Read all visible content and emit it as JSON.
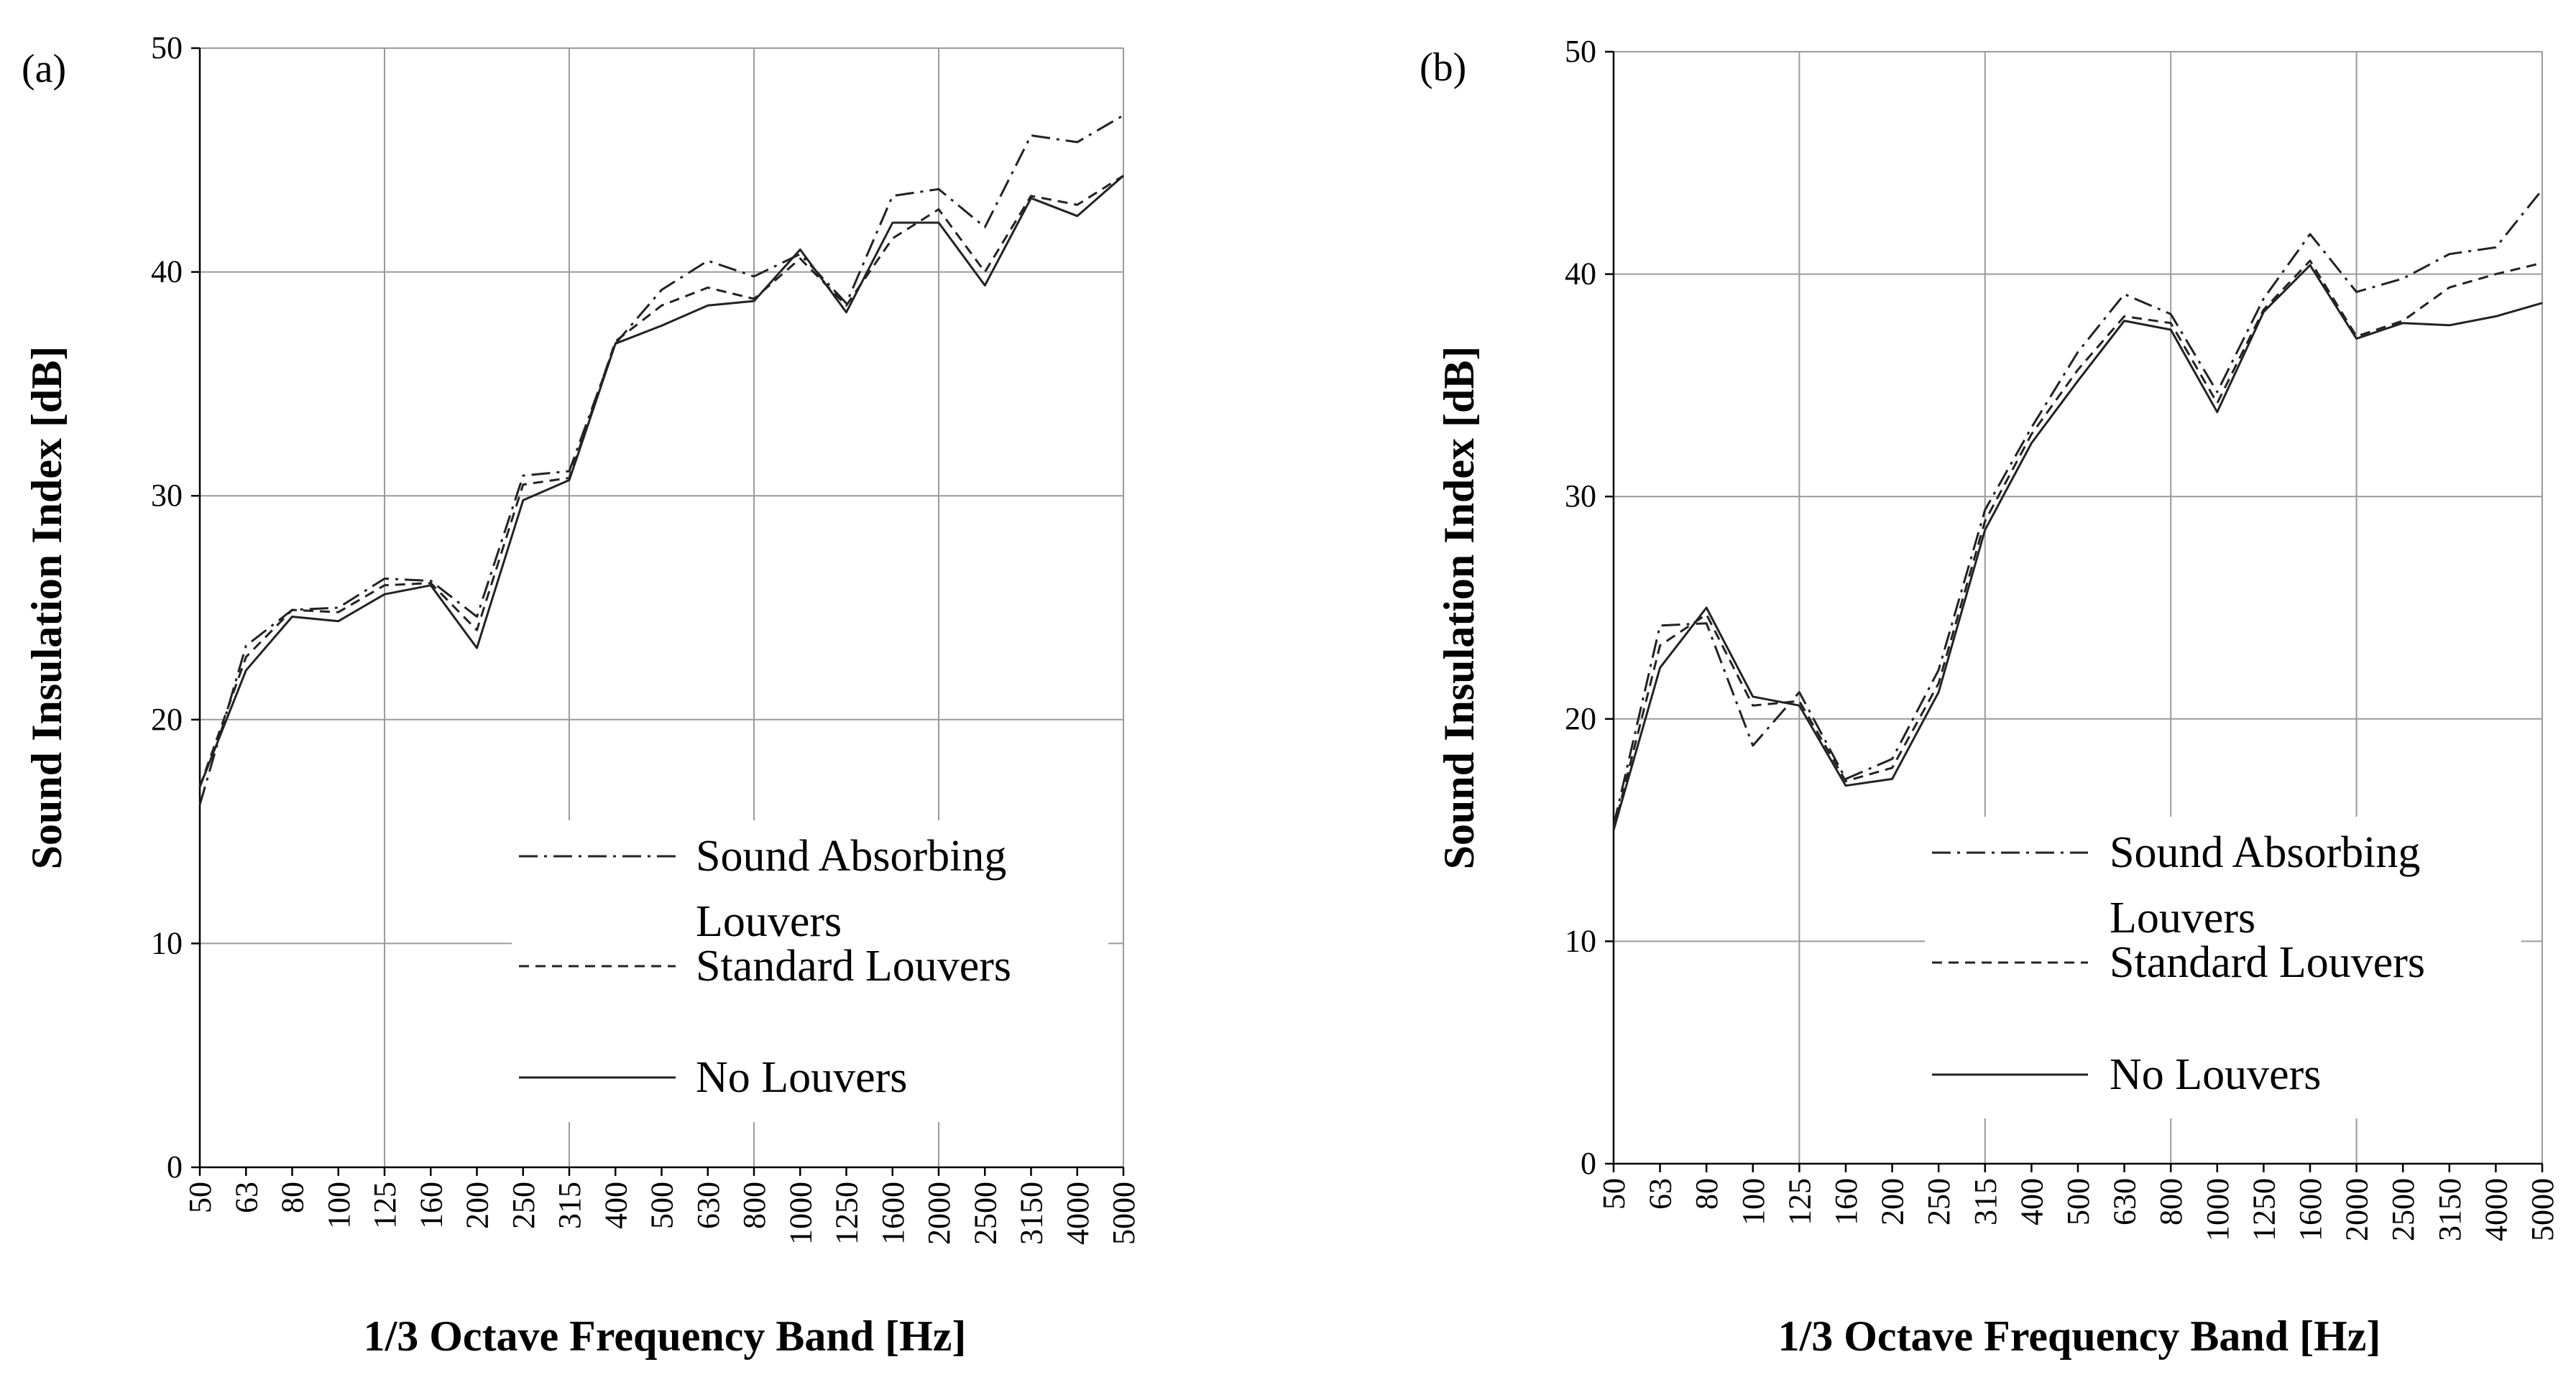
{
  "chart_data": [
    {
      "type": "line",
      "panel_label": "(a)",
      "xlabel": "1/3 Octave Frequency Band [Hz]",
      "ylabel": "Sound Insulation Index [dB]",
      "ylim": [
        0,
        50
      ],
      "yticks": [
        "0",
        "10",
        "20",
        "30",
        "40",
        "50"
      ],
      "categories": [
        "50",
        "63",
        "80",
        "100",
        "125",
        "160",
        "200",
        "250",
        "315",
        "400",
        "500",
        "630",
        "800",
        "1000",
        "1250",
        "1600",
        "2000",
        "2500",
        "3150",
        "4000",
        "5000"
      ],
      "legend": [
        {
          "label_line1": "Sound Absorbing",
          "label_line2": "Louvers",
          "dash": "dash-dot"
        },
        {
          "label_line1": "Standard Louvers",
          "label_line2": "",
          "dash": "dashed"
        },
        {
          "label_line1": "No Louvers",
          "label_line2": "",
          "dash": "solid"
        }
      ],
      "series": [
        {
          "name": "Sound Absorbing Louvers",
          "values": [
            16.2,
            23.3,
            24.9,
            25.0,
            26.3,
            26.2,
            24.6,
            30.9,
            31.1,
            36.8,
            39.2,
            40.5,
            39.8,
            40.8,
            38.6,
            43.4,
            43.7,
            42.0,
            46.1,
            45.8,
            47.0
          ]
        },
        {
          "name": "Standard Louvers",
          "values": [
            17.0,
            22.8,
            24.9,
            24.8,
            26.0,
            26.1,
            24.0,
            30.5,
            30.8,
            36.9,
            38.5,
            39.3,
            38.8,
            40.6,
            38.5,
            41.5,
            42.8,
            40.0,
            43.4,
            43.0,
            44.3
          ]
        },
        {
          "name": "No Louvers",
          "values": [
            17.0,
            22.2,
            24.6,
            24.4,
            25.6,
            26.0,
            23.2,
            29.8,
            30.7,
            36.8,
            37.6,
            38.5,
            38.7,
            41.0,
            38.2,
            42.2,
            42.2,
            39.4,
            43.3,
            42.5,
            44.3
          ]
        }
      ]
    },
    {
      "type": "line",
      "panel_label": "(b)",
      "xlabel": "1/3 Octave Frequency Band [Hz]",
      "ylabel": "Sound Insulation Index [dB]",
      "ylim": [
        0,
        50
      ],
      "yticks": [
        "0",
        "10",
        "20",
        "30",
        "40",
        "50"
      ],
      "categories": [
        "50",
        "63",
        "80",
        "100",
        "125",
        "160",
        "200",
        "250",
        "315",
        "400",
        "500",
        "630",
        "800",
        "1000",
        "1250",
        "1600",
        "2000",
        "2500",
        "3150",
        "4000",
        "5000"
      ],
      "legend": [
        {
          "label_line1": "Sound Absorbing",
          "label_line2": "Louvers",
          "dash": "dash-dot"
        },
        {
          "label_line1": "Standard Louvers",
          "label_line2": "",
          "dash": "dashed"
        },
        {
          "label_line1": "No Louvers",
          "label_line2": "",
          "dash": "solid"
        }
      ],
      "series": [
        {
          "name": "Sound Absorbing Louvers",
          "values": [
            15.2,
            24.2,
            24.3,
            18.8,
            21.2,
            17.3,
            18.2,
            22.2,
            29.4,
            33.1,
            36.5,
            39.1,
            38.2,
            34.7,
            38.9,
            41.8,
            39.2,
            39.8,
            40.9,
            41.2,
            43.8
          ]
        },
        {
          "name": "Standard Louvers",
          "values": [
            15.0,
            23.3,
            24.7,
            20.6,
            20.8,
            17.2,
            17.8,
            21.6,
            28.9,
            32.8,
            35.7,
            38.1,
            37.8,
            34.2,
            38.4,
            40.6,
            37.2,
            37.9,
            39.4,
            40.0,
            40.5
          ]
        },
        {
          "name": "No Louvers",
          "values": [
            15.0,
            22.3,
            25.0,
            21.0,
            20.6,
            17.0,
            17.3,
            21.2,
            28.5,
            32.4,
            35.2,
            37.9,
            37.5,
            33.8,
            38.3,
            40.4,
            37.1,
            37.8,
            37.7,
            38.1,
            38.7
          ]
        }
      ]
    }
  ]
}
